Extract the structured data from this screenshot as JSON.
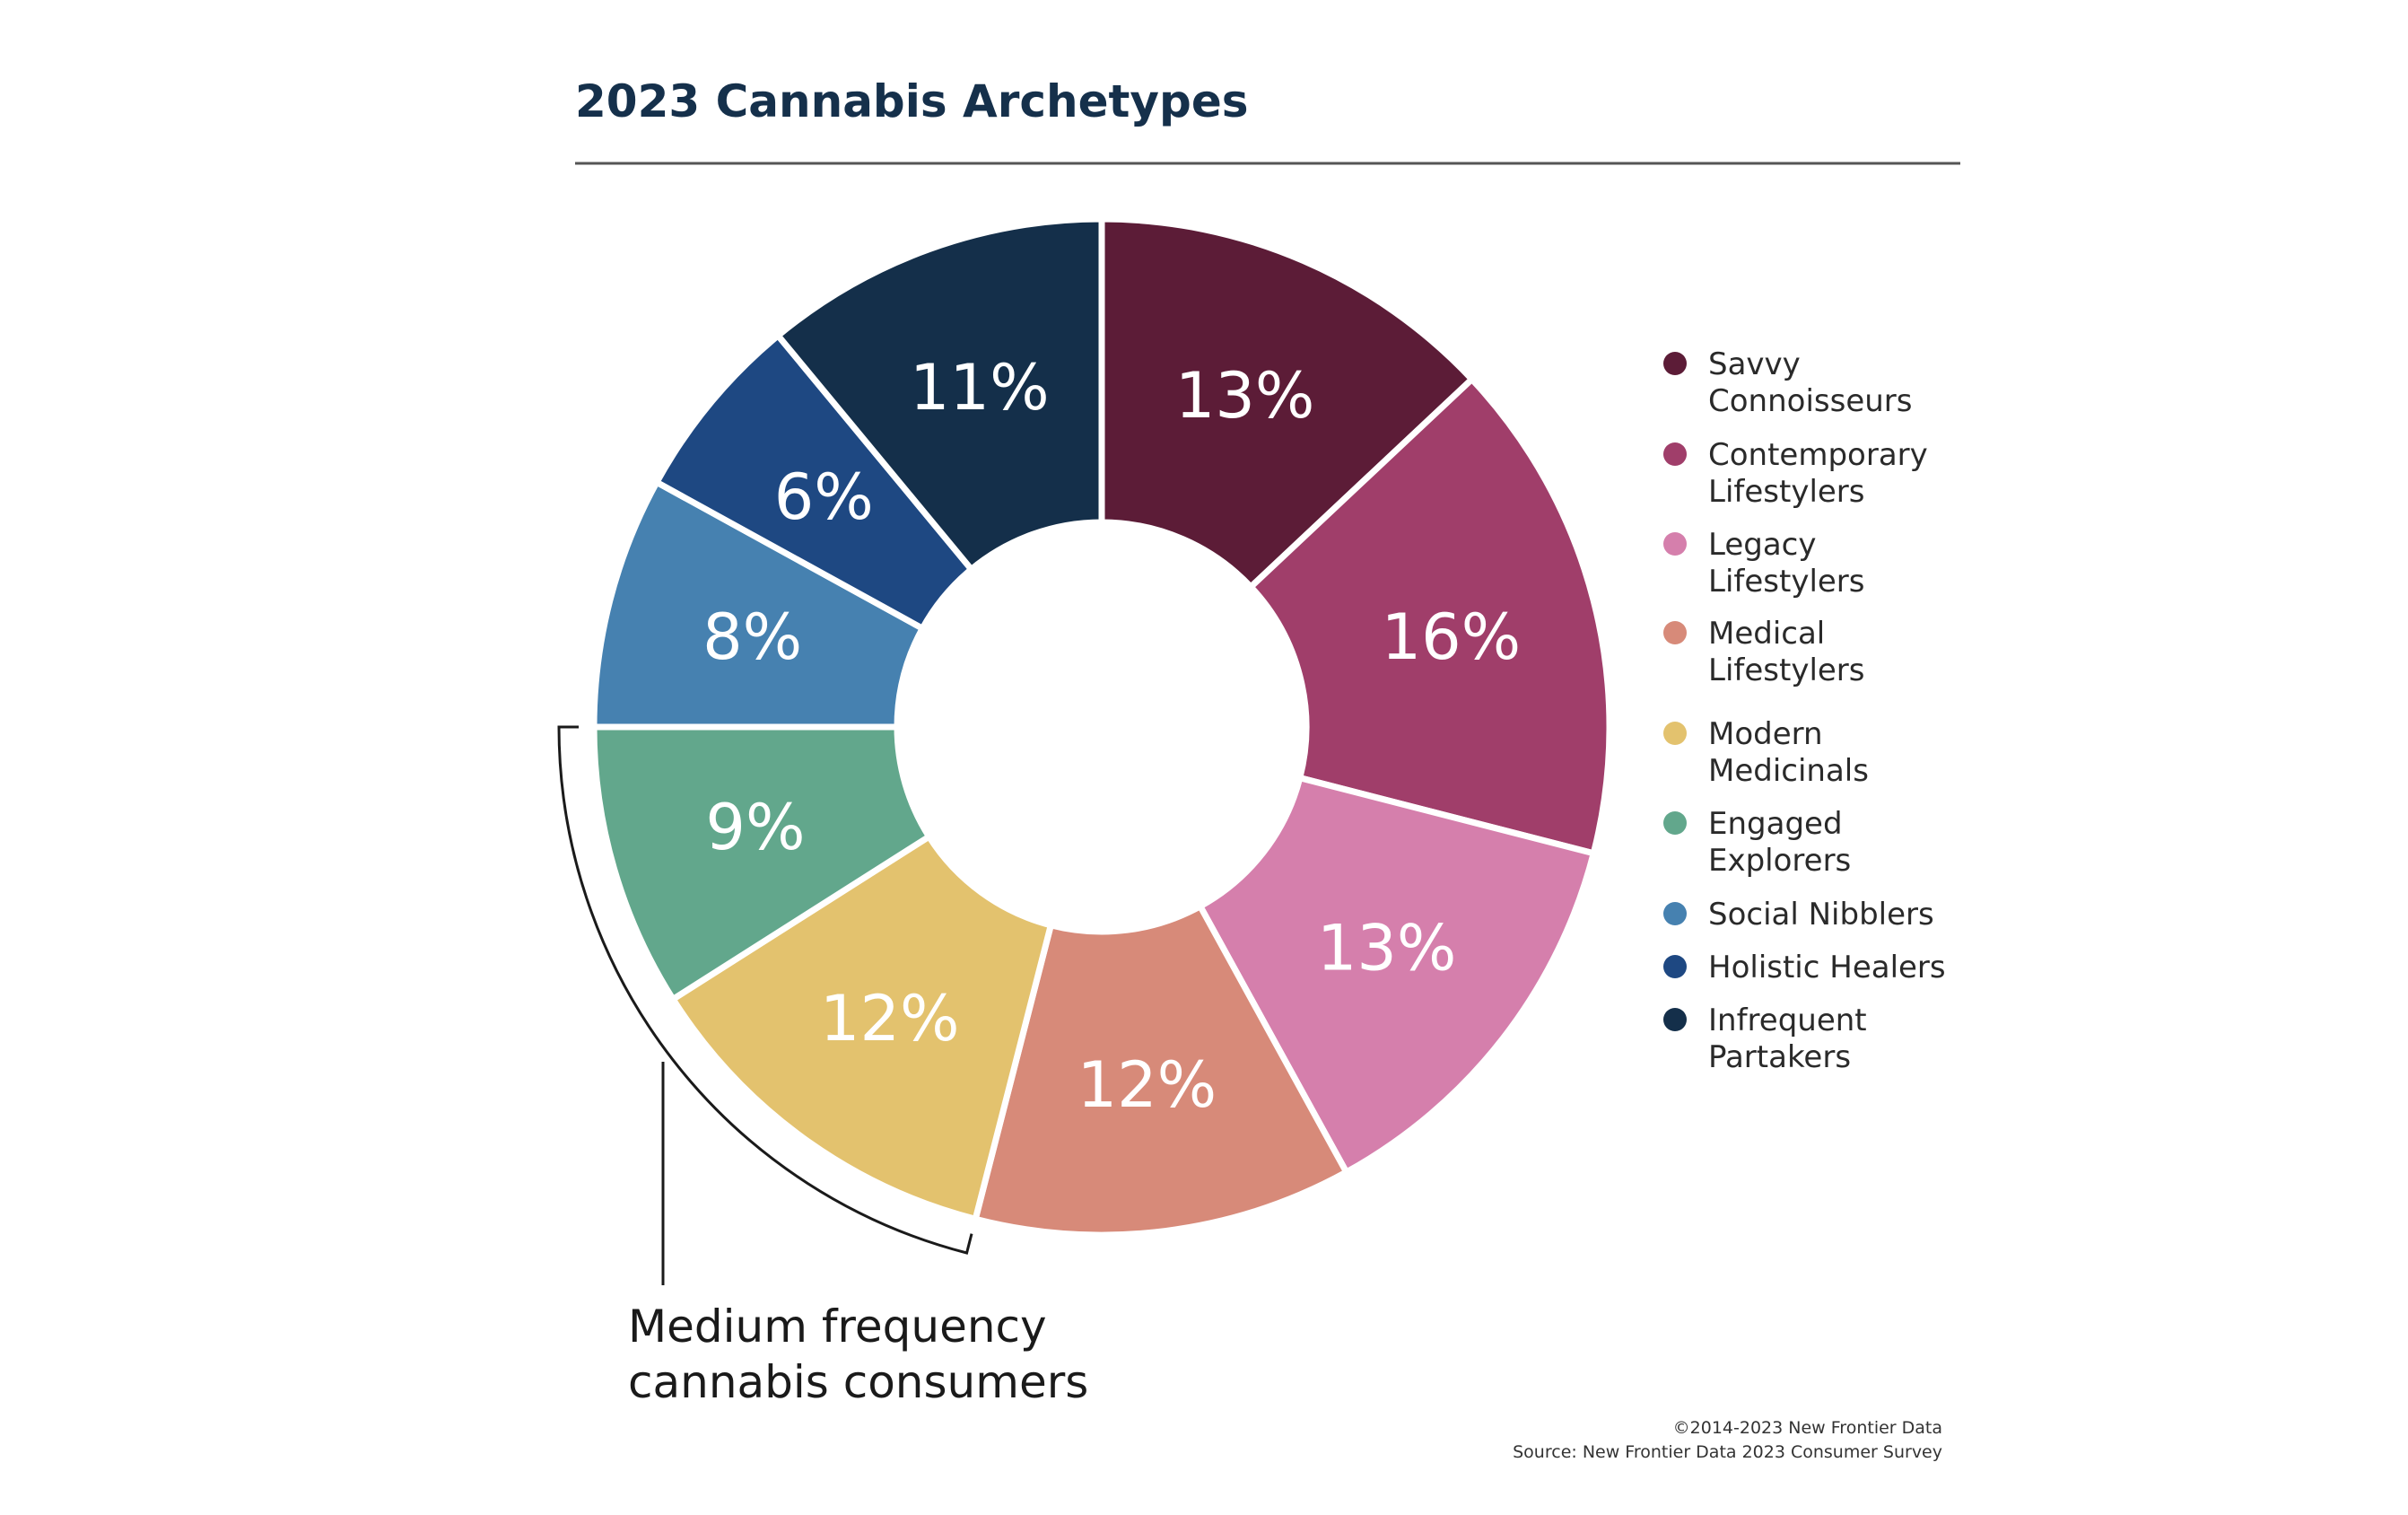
{
  "chart_data": {
    "type": "pie",
    "title": "2023 Cannabis Archetypes",
    "series": [
      {
        "name": "Savvy Connoisseurs",
        "legend_lines": [
          "Savvy",
          "Connoisseurs"
        ],
        "value": 13,
        "label": "13%",
        "color": "#5c1c37"
      },
      {
        "name": "Contemporary Lifestylers",
        "legend_lines": [
          "Contemporary",
          "Lifestylers"
        ],
        "value": 16,
        "label": "16%",
        "color": "#a03e6a"
      },
      {
        "name": "Legacy Lifestylers",
        "legend_lines": [
          "Legacy",
          "Lifestylers"
        ],
        "value": 13,
        "label": "13%",
        "color": "#d57fac"
      },
      {
        "name": "Medical Lifestylers",
        "legend_lines": [
          "Medical",
          "Lifestylers"
        ],
        "value": 12,
        "label": "12%",
        "color": "#d78a79"
      },
      {
        "name": "Modern Medicinals",
        "legend_lines": [
          "Modern",
          "Medicinals"
        ],
        "value": 12,
        "label": "12%",
        "color": "#e3c26e"
      },
      {
        "name": "Engaged Explorers",
        "legend_lines": [
          "Engaged",
          "Explorers"
        ],
        "value": 9,
        "label": "9%",
        "color": "#62a78c"
      },
      {
        "name": "Social Nibblers",
        "legend_lines": [
          "Social Nibblers"
        ],
        "value": 8,
        "label": "8%",
        "color": "#4681b0"
      },
      {
        "name": "Holistic Healers",
        "legend_lines": [
          "Holistic Healers"
        ],
        "value": 6,
        "label": "6%",
        "color": "#1e4882"
      },
      {
        "name": "Infrequent Partakers",
        "legend_lines": [
          "Infrequent",
          "Partakers"
        ],
        "value": 11,
        "label": "11%",
        "color": "#142f4a"
      }
    ],
    "legend_position": "right",
    "annotation": {
      "lines": [
        "Medium frequency",
        "cannabis consumers"
      ],
      "spans": [
        "Engaged Explorers",
        "Modern Medicinals"
      ]
    }
  },
  "source": {
    "copyright": "©2014-2023  New Frontier Data",
    "source_line": "Source: New Frontier Data 2023 Consumer Survey"
  },
  "colors": {
    "title": "#15304b",
    "rule": "#555555",
    "separator": "#ffffff"
  }
}
